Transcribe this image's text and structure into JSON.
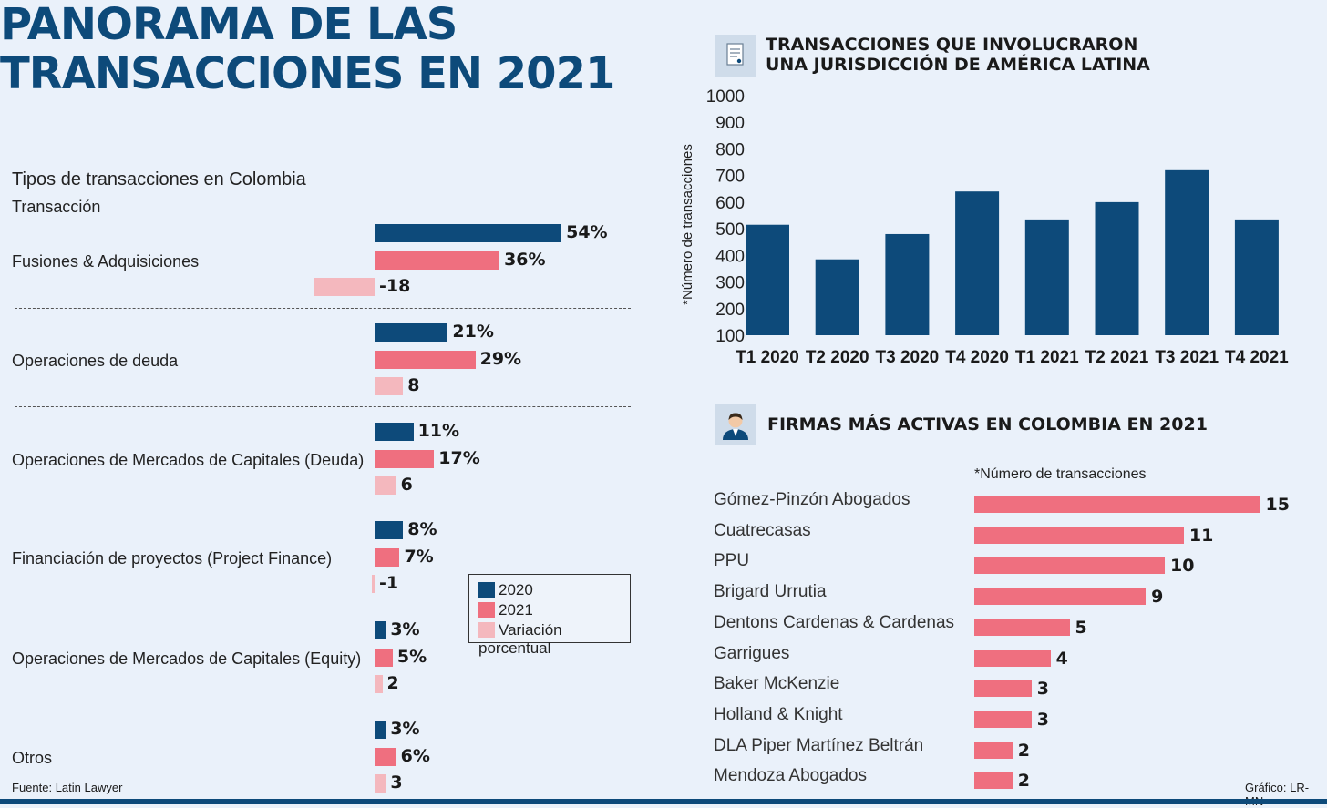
{
  "title": "PANORAMA DE LAS TRANSACCIONES EN 2021",
  "colors": {
    "dark_blue": "#0d4a7a",
    "pink": "#ef6f7f",
    "light_pink": "#f4b8be",
    "background": "#eaf1fa"
  },
  "left": {
    "subtitle": "Tipos de transacciones en Colombia",
    "col_header": "Transacción",
    "legend": [
      "2020",
      "2021",
      "Variación porcentual"
    ],
    "source": "Fuente: Latin Lawyer"
  },
  "right_top": {
    "title_line1": "TRANSACCIONES QUE INVOLUCRARON",
    "title_line2": "UNA JURISDICCIÓN DE AMÉRICA LATINA",
    "icon": "document-icon"
  },
  "right_bottom": {
    "title": "FIRMAS MÁS ACTIVAS EN COLOMBIA EN 2021",
    "note": "*Número de transacciones",
    "icon": "person-icon",
    "credit": "Gráfico: LR-MN"
  },
  "chart_data": [
    {
      "type": "bar",
      "orientation": "horizontal",
      "title": "Tipos de transacciones en Colombia",
      "categories": [
        "Fusiones & Adquisiciones",
        "Operaciones de deuda",
        "Operaciones de Mercados de Capitales (Deuda)",
        "Financiación de proyectos (Project Finance)",
        "Operaciones de Mercados de Capitales (Equity)",
        "Otros"
      ],
      "series": [
        {
          "name": "2020",
          "values": [
            54,
            21,
            11,
            8,
            3,
            3
          ],
          "labels": [
            "54%",
            "21%",
            "11%",
            "8%",
            "3%",
            "3%"
          ]
        },
        {
          "name": "2021",
          "values": [
            36,
            29,
            17,
            7,
            5,
            6
          ],
          "labels": [
            "36%",
            "29%",
            "17%",
            "7%",
            "5%",
            "6%"
          ]
        },
        {
          "name": "Variación porcentual",
          "values": [
            -18,
            8,
            6,
            -1,
            2,
            3
          ],
          "labels": [
            "-18",
            "8",
            "6",
            "-1",
            "2",
            "3"
          ]
        }
      ]
    },
    {
      "type": "bar",
      "title": "TRANSACCIONES QUE INVOLUCRARON UNA JURISDICCIÓN DE AMÉRICA LATINA",
      "ylabel": "*Número de transacciones",
      "categories": [
        "T1 2020",
        "T2 2020",
        "T3 2020",
        "T4 2020",
        "T1 2021",
        "T2 2021",
        "T3 2021",
        "T4 2021"
      ],
      "values": [
        515,
        385,
        480,
        640,
        535,
        600,
        720,
        535
      ],
      "yticks": [
        "100",
        "200",
        "300",
        "400",
        "500",
        "600",
        "700",
        "800",
        "900",
        "1000"
      ],
      "ylim": [
        100,
        1000
      ]
    },
    {
      "type": "bar",
      "orientation": "horizontal",
      "title": "FIRMAS MÁS ACTIVAS EN COLOMBIA EN 2021",
      "categories": [
        "Gómez-Pinzón Abogados",
        "Cuatrecasas",
        "PPU",
        "Brigard Urrutia",
        "Dentons Cardenas & Cardenas",
        "Garrigues",
        "Baker McKenzie",
        "Holland & Knight",
        "DLA Piper Martínez Beltrán",
        "Mendoza Abogados"
      ],
      "values": [
        15,
        11,
        10,
        9,
        5,
        4,
        3,
        3,
        2,
        2
      ]
    }
  ]
}
